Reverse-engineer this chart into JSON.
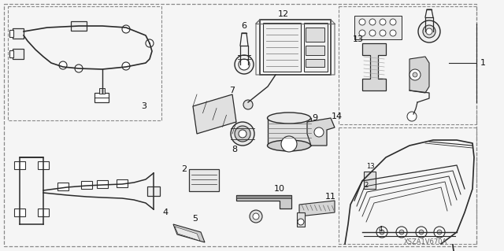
{
  "bg_color": "#f5f5f5",
  "line_color": "#2a2a2a",
  "watermark": "XSZA1V670A",
  "figsize": [
    6.4,
    3.19
  ],
  "dpi": 100
}
